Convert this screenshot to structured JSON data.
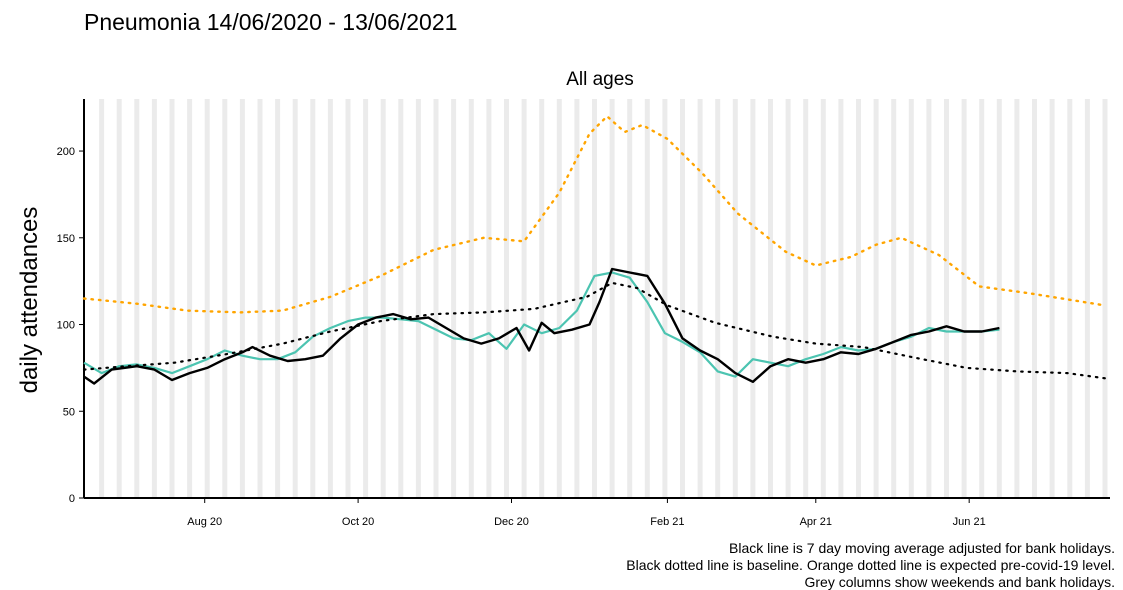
{
  "page_title": "Pneumonia 14/06/2020 - 13/06/2021",
  "captions": [
    "Black line is 7 day moving average adjusted for bank holidays.",
    "Black dotted line is baseline. Orange dotted line is expected pre-covid-19 level.",
    "Grey columns show weekends and bank holidays."
  ],
  "colors": {
    "daily": "#4cc4b1",
    "moving_average": "#000000",
    "baseline": "#000000",
    "expected": "#ffa500",
    "weekend_columns": "#ebebeb"
  },
  "chart_data": {
    "type": "line",
    "title": "All ages",
    "xlabel": "",
    "ylabel": "daily attendances",
    "ylim": [
      0,
      230
    ],
    "xlim": [
      "2020-06-14",
      "2021-07-27"
    ],
    "yticks": [
      0,
      50,
      100,
      150,
      200
    ],
    "xticks": [
      {
        "date": "2020-08-01",
        "label": "Aug 20"
      },
      {
        "date": "2020-10-01",
        "label": "Oct 20"
      },
      {
        "date": "2020-12-01",
        "label": "Dec 20"
      },
      {
        "date": "2021-02-01",
        "label": "Feb 21"
      },
      {
        "date": "2021-04-01",
        "label": "Apr 21"
      },
      {
        "date": "2021-06-01",
        "label": "Jun 21"
      }
    ],
    "grey_columns": "weekends and bank holidays",
    "series": [
      {
        "name": "daily attendances",
        "style": "solid-thin",
        "points": [
          [
            "2020-06-14",
            78
          ],
          [
            "2020-06-21",
            72
          ],
          [
            "2020-06-28",
            76
          ],
          [
            "2020-07-05",
            77
          ],
          [
            "2020-07-12",
            75
          ],
          [
            "2020-07-19",
            72
          ],
          [
            "2020-07-26",
            76
          ],
          [
            "2020-08-02",
            80
          ],
          [
            "2020-08-09",
            85
          ],
          [
            "2020-08-16",
            82
          ],
          [
            "2020-08-23",
            80
          ],
          [
            "2020-08-30",
            80
          ],
          [
            "2020-09-06",
            84
          ],
          [
            "2020-09-13",
            93
          ],
          [
            "2020-09-20",
            98
          ],
          [
            "2020-09-27",
            102
          ],
          [
            "2020-10-04",
            104
          ],
          [
            "2020-10-11",
            104
          ],
          [
            "2020-10-18",
            103
          ],
          [
            "2020-10-25",
            102
          ],
          [
            "2020-11-01",
            97
          ],
          [
            "2020-11-08",
            92
          ],
          [
            "2020-11-15",
            91
          ],
          [
            "2020-11-22",
            95
          ],
          [
            "2020-11-29",
            86
          ],
          [
            "2020-12-06",
            100
          ],
          [
            "2020-12-13",
            95
          ],
          [
            "2020-12-20",
            98
          ],
          [
            "2020-12-27",
            108
          ],
          [
            "2021-01-03",
            128
          ],
          [
            "2021-01-10",
            130
          ],
          [
            "2021-01-17",
            127
          ],
          [
            "2021-01-24",
            113
          ],
          [
            "2021-01-31",
            95
          ],
          [
            "2021-02-07",
            90
          ],
          [
            "2021-02-14",
            84
          ],
          [
            "2021-02-21",
            73
          ],
          [
            "2021-02-28",
            70
          ],
          [
            "2021-03-07",
            80
          ],
          [
            "2021-03-14",
            78
          ],
          [
            "2021-03-21",
            76
          ],
          [
            "2021-03-28",
            80
          ],
          [
            "2021-04-04",
            83
          ],
          [
            "2021-04-11",
            87
          ],
          [
            "2021-04-18",
            85
          ],
          [
            "2021-04-25",
            86
          ],
          [
            "2021-05-02",
            90
          ],
          [
            "2021-05-09",
            93
          ],
          [
            "2021-05-16",
            98
          ],
          [
            "2021-05-23",
            96
          ],
          [
            "2021-05-30",
            96
          ],
          [
            "2021-06-06",
            96
          ],
          [
            "2021-06-13",
            97
          ]
        ]
      },
      {
        "name": "7 day moving average",
        "style": "solid-thick",
        "points": [
          [
            "2020-06-14",
            70
          ],
          [
            "2020-06-18",
            66
          ],
          [
            "2020-06-25",
            74
          ],
          [
            "2020-07-05",
            76
          ],
          [
            "2020-07-12",
            74
          ],
          [
            "2020-07-19",
            68
          ],
          [
            "2020-07-26",
            72
          ],
          [
            "2020-08-02",
            75
          ],
          [
            "2020-08-09",
            80
          ],
          [
            "2020-08-16",
            84
          ],
          [
            "2020-08-20",
            87
          ],
          [
            "2020-08-27",
            82
          ],
          [
            "2020-09-03",
            79
          ],
          [
            "2020-09-10",
            80
          ],
          [
            "2020-09-17",
            82
          ],
          [
            "2020-09-24",
            92
          ],
          [
            "2020-10-01",
            100
          ],
          [
            "2020-10-08",
            104
          ],
          [
            "2020-10-15",
            106
          ],
          [
            "2020-10-22",
            103
          ],
          [
            "2020-10-29",
            104
          ],
          [
            "2020-11-05",
            98
          ],
          [
            "2020-11-12",
            92
          ],
          [
            "2020-11-19",
            89
          ],
          [
            "2020-11-26",
            92
          ],
          [
            "2020-12-03",
            98
          ],
          [
            "2020-12-08",
            85
          ],
          [
            "2020-12-13",
            101
          ],
          [
            "2020-12-18",
            95
          ],
          [
            "2020-12-25",
            97
          ],
          [
            "2021-01-01",
            100
          ],
          [
            "2021-01-05",
            113
          ],
          [
            "2021-01-10",
            132
          ],
          [
            "2021-01-17",
            130
          ],
          [
            "2021-01-24",
            128
          ],
          [
            "2021-01-31",
            112
          ],
          [
            "2021-02-07",
            92
          ],
          [
            "2021-02-14",
            85
          ],
          [
            "2021-02-21",
            80
          ],
          [
            "2021-02-28",
            72
          ],
          [
            "2021-03-07",
            67
          ],
          [
            "2021-03-14",
            76
          ],
          [
            "2021-03-21",
            80
          ],
          [
            "2021-03-28",
            78
          ],
          [
            "2021-04-04",
            80
          ],
          [
            "2021-04-11",
            84
          ],
          [
            "2021-04-18",
            83
          ],
          [
            "2021-04-25",
            86
          ],
          [
            "2021-05-02",
            90
          ],
          [
            "2021-05-09",
            94
          ],
          [
            "2021-05-16",
            96
          ],
          [
            "2021-05-23",
            99
          ],
          [
            "2021-05-30",
            96
          ],
          [
            "2021-06-06",
            96
          ],
          [
            "2021-06-13",
            98
          ]
        ]
      },
      {
        "name": "baseline",
        "style": "dotted-black",
        "points": [
          [
            "2020-06-14",
            74
          ],
          [
            "2020-07-01",
            76
          ],
          [
            "2020-07-20",
            78
          ],
          [
            "2020-08-10",
            83
          ],
          [
            "2020-09-01",
            89
          ],
          [
            "2020-09-20",
            96
          ],
          [
            "2020-10-10",
            102
          ],
          [
            "2020-10-31",
            106
          ],
          [
            "2020-11-20",
            107
          ],
          [
            "2020-12-10",
            109
          ],
          [
            "2020-12-31",
            116
          ],
          [
            "2021-01-10",
            124
          ],
          [
            "2021-01-20",
            121
          ],
          [
            "2021-02-01",
            111
          ],
          [
            "2021-02-20",
            101
          ],
          [
            "2021-03-15",
            93
          ],
          [
            "2021-04-01",
            89
          ],
          [
            "2021-04-20",
            87
          ],
          [
            "2021-05-10",
            81
          ],
          [
            "2021-05-31",
            75
          ],
          [
            "2021-06-20",
            73
          ],
          [
            "2021-07-10",
            72
          ],
          [
            "2021-07-25",
            69
          ]
        ]
      },
      {
        "name": "expected pre-covid-19 level",
        "style": "dotted-orange",
        "points": [
          [
            "2020-06-14",
            115
          ],
          [
            "2020-07-05",
            112
          ],
          [
            "2020-07-25",
            108
          ],
          [
            "2020-08-15",
            107
          ],
          [
            "2020-09-01",
            108
          ],
          [
            "2020-09-20",
            116
          ],
          [
            "2020-10-10",
            128
          ],
          [
            "2020-10-31",
            143
          ],
          [
            "2020-11-20",
            150
          ],
          [
            "2020-12-06",
            148
          ],
          [
            "2020-12-20",
            176
          ],
          [
            "2021-01-01",
            210
          ],
          [
            "2021-01-08",
            220
          ],
          [
            "2021-01-15",
            211
          ],
          [
            "2021-01-22",
            215
          ],
          [
            "2021-02-01",
            207
          ],
          [
            "2021-02-15",
            187
          ],
          [
            "2021-03-01",
            164
          ],
          [
            "2021-03-20",
            142
          ],
          [
            "2021-04-01",
            134
          ],
          [
            "2021-04-15",
            139
          ],
          [
            "2021-04-25",
            146
          ],
          [
            "2021-05-05",
            150
          ],
          [
            "2021-05-20",
            140
          ],
          [
            "2021-06-05",
            122
          ],
          [
            "2021-06-25",
            118
          ],
          [
            "2021-07-25",
            111
          ]
        ]
      }
    ]
  }
}
